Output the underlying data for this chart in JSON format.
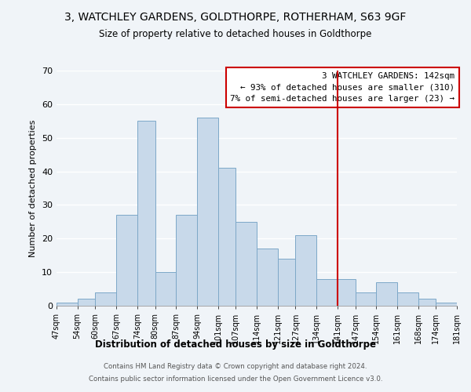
{
  "title": "3, WATCHLEY GARDENS, GOLDTHORPE, ROTHERHAM, S63 9GF",
  "subtitle": "Size of property relative to detached houses in Goldthorpe",
  "xlabel": "Distribution of detached houses by size in Goldthorpe",
  "ylabel": "Number of detached properties",
  "footer1": "Contains HM Land Registry data © Crown copyright and database right 2024.",
  "footer2": "Contains public sector information licensed under the Open Government Licence v3.0.",
  "bin_edges": [
    47,
    54,
    60,
    67,
    74,
    80,
    87,
    94,
    101,
    107,
    114,
    121,
    127,
    134,
    141,
    147,
    154,
    161,
    168,
    174,
    181
  ],
  "bar_heights": [
    1,
    2,
    4,
    27,
    55,
    10,
    27,
    56,
    41,
    25,
    17,
    14,
    21,
    8,
    8,
    4,
    7,
    4,
    2,
    1
  ],
  "bar_color": "#c8d9ea",
  "bar_edge_color": "#7da8c8",
  "vline_x": 141,
  "vline_color": "#cc0000",
  "ylim": [
    0,
    70
  ],
  "yticks": [
    0,
    10,
    20,
    30,
    40,
    50,
    60,
    70
  ],
  "annotation_title": "3 WATCHLEY GARDENS: 142sqm",
  "annotation_line1": "← 93% of detached houses are smaller (310)",
  "annotation_line2": "7% of semi-detached houses are larger (23) →",
  "bg_color": "#f0f4f8",
  "plot_bg_color": "#f0f4f8",
  "grid_color": "#ffffff"
}
